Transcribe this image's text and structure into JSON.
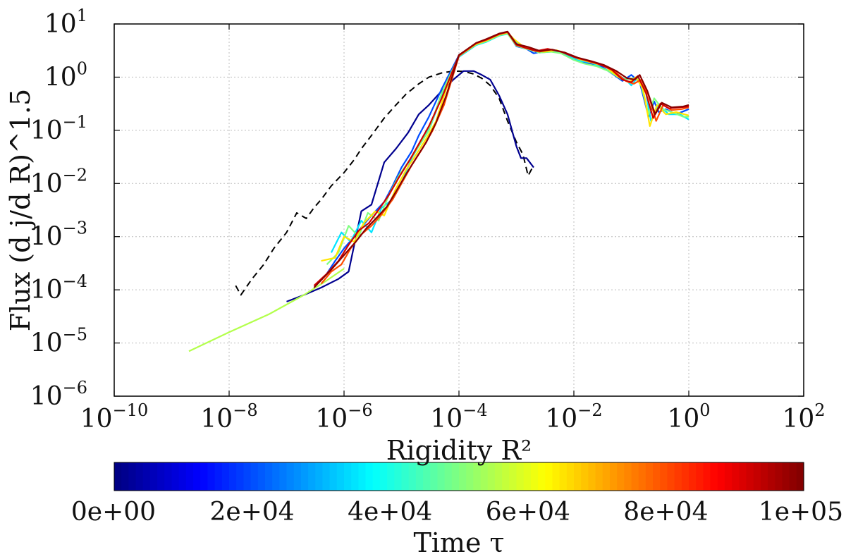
{
  "chart_data": {
    "type": "line",
    "x_scale": "log",
    "y_scale": "log",
    "xlim": [
      1e-10,
      100
    ],
    "ylim": [
      1e-06,
      10
    ],
    "grid": true,
    "xlabel": "Rigidity R²",
    "ylabel": "Flux (d j/d R)^1.5",
    "x_ticks": [
      {
        "value": 1e-10,
        "base": "10",
        "exp": "−10"
      },
      {
        "value": 1e-08,
        "base": "10",
        "exp": "−8"
      },
      {
        "value": 1e-06,
        "base": "10",
        "exp": "−6"
      },
      {
        "value": 0.0001,
        "base": "10",
        "exp": "−4"
      },
      {
        "value": 0.01,
        "base": "10",
        "exp": "−2"
      },
      {
        "value": 1,
        "base": "10",
        "exp": "0"
      },
      {
        "value": 100,
        "base": "10",
        "exp": "2"
      }
    ],
    "y_ticks": [
      {
        "value": 1e-06,
        "base": "10",
        "exp": "−6"
      },
      {
        "value": 1e-05,
        "base": "10",
        "exp": "−5"
      },
      {
        "value": 0.0001,
        "base": "10",
        "exp": "−4"
      },
      {
        "value": 0.001,
        "base": "10",
        "exp": "−3"
      },
      {
        "value": 0.01,
        "base": "10",
        "exp": "−2"
      },
      {
        "value": 0.1,
        "base": "10",
        "exp": "−1"
      },
      {
        "value": 1,
        "base": "10",
        "exp": "0"
      },
      {
        "value": 10,
        "base": "10",
        "exp": "1"
      }
    ],
    "colorbar": {
      "label": "Time τ",
      "range": [
        0,
        100000
      ],
      "tick_labels": [
        "0e+00",
        "2e+04",
        "4e+04",
        "6e+04",
        "8e+04",
        "1e+05"
      ],
      "colormap": "jet"
    },
    "series": [
      {
        "id": "reference-dashed",
        "style": "dashed",
        "color": "#000000",
        "x": [
          1.3e-08,
          1.6e-08,
          2.5e-08,
          4e-08,
          6e-08,
          1e-07,
          1.5e-07,
          2.2e-07,
          3e-07,
          4e-07,
          6e-07,
          1e-06,
          1.5e-06,
          2e-06,
          3e-06,
          5e-06,
          8e-06,
          1.2e-05,
          2e-05,
          3e-05,
          5e-05,
          8e-05,
          0.00012,
          0.00018,
          0.00025,
          0.00035,
          0.0005,
          0.0007,
          0.001,
          0.0013,
          0.0016,
          0.002
        ],
        "y": [
          0.00012,
          8e-05,
          0.00016,
          0.0003,
          0.0006,
          0.0012,
          0.0028,
          0.0022,
          0.0035,
          0.005,
          0.009,
          0.016,
          0.028,
          0.045,
          0.08,
          0.17,
          0.3,
          0.48,
          0.75,
          1.0,
          1.2,
          1.3,
          1.28,
          1.15,
          0.95,
          0.7,
          0.4,
          0.15,
          0.06,
          0.035,
          0.014,
          0.022
        ]
      },
      {
        "id": "early-time",
        "t": 1500,
        "x": [
          1e-07,
          2e-07,
          4e-07,
          8e-07,
          1.2e-06,
          2e-06,
          3e-06,
          5e-06,
          8e-06,
          1.3e-05,
          2e-05,
          3e-05,
          5e-05,
          8e-05,
          0.00012,
          0.00018,
          0.00025,
          0.00035,
          0.0005,
          0.0007,
          0.001,
          0.0012,
          0.0015,
          0.002
        ],
        "y": [
          6e-05,
          8e-05,
          0.00011,
          0.00016,
          0.00022,
          0.003,
          0.004,
          0.025,
          0.045,
          0.09,
          0.2,
          0.3,
          0.55,
          0.9,
          1.3,
          1.3,
          1.1,
          0.9,
          0.45,
          0.2,
          0.05,
          0.03,
          0.03,
          0.02
        ]
      },
      {
        "id": "green-branch",
        "t": 55000,
        "x": [
          2e-09,
          1e-08,
          5e-08,
          2e-07,
          5e-07,
          1e-06
        ],
        "y": [
          7e-06,
          1.6e-05,
          3.5e-05,
          8e-05,
          0.00015,
          0.00025
        ]
      },
      {
        "id": "run-a",
        "t": 20000,
        "x": [
          5e-07,
          7e-07,
          1e-06,
          1.5e-06,
          2e-06,
          3e-06,
          5e-06,
          7e-06,
          1e-05,
          1.5e-05,
          2e-05,
          3e-05,
          5e-05,
          0.0001,
          0.0002,
          0.0003,
          0.0005,
          0.0007,
          0.0008,
          0.001,
          0.0015,
          0.002,
          0.003,
          0.005,
          0.007,
          0.01,
          0.02,
          0.03,
          0.05,
          0.07,
          0.1,
          0.14,
          0.2,
          0.25,
          0.3,
          0.4,
          0.6,
          1.0
        ],
        "y": [
          0.0002,
          0.00035,
          0.0006,
          0.001,
          0.0015,
          0.0025,
          0.0045,
          0.009,
          0.02,
          0.04,
          0.08,
          0.18,
          0.6,
          2.6,
          4.2,
          4.8,
          6.2,
          6.8,
          5.5,
          3.8,
          3.4,
          2.8,
          3.1,
          3.1,
          2.6,
          2.1,
          1.8,
          1.6,
          1.1,
          0.85,
          1.1,
          0.8,
          0.18,
          0.35,
          0.22,
          0.25,
          0.2,
          0.25
        ]
      },
      {
        "id": "run-b",
        "t": 35000,
        "x": [
          6e-07,
          9e-07,
          1.3e-06,
          2e-06,
          3e-06,
          4.5e-06,
          7e-06,
          1e-05,
          1.5e-05,
          2.2e-05,
          3.2e-05,
          5e-05,
          0.0001,
          0.0002,
          0.0003,
          0.0005,
          0.0007,
          0.0009,
          0.0012,
          0.0018,
          0.0025,
          0.004,
          0.006,
          0.009,
          0.013,
          0.02,
          0.03,
          0.05,
          0.08,
          0.1,
          0.13,
          0.18,
          0.22,
          0.3,
          0.45,
          0.7,
          1.0
        ],
        "y": [
          0.0005,
          0.0012,
          0.0008,
          0.002,
          0.0012,
          0.0035,
          0.005,
          0.01,
          0.03,
          0.06,
          0.12,
          0.45,
          2.4,
          4.0,
          4.6,
          6.0,
          6.5,
          5.0,
          3.7,
          3.3,
          2.9,
          3.0,
          3.0,
          2.4,
          2.0,
          1.9,
          1.5,
          1.2,
          0.9,
          0.7,
          1.0,
          0.5,
          0.15,
          0.3,
          0.2,
          0.2,
          0.16
        ]
      },
      {
        "id": "run-c",
        "t": 50000,
        "x": [
          5e-07,
          8e-07,
          1.2e-06,
          1.8e-06,
          2.6e-06,
          4e-06,
          6e-06,
          9e-06,
          1.3e-05,
          2e-05,
          3e-05,
          5e-05,
          0.0001,
          0.0002,
          0.0003,
          0.0005,
          0.0007,
          0.001,
          0.0015,
          0.0025,
          0.004,
          0.006,
          0.01,
          0.015,
          0.025,
          0.04,
          0.07,
          0.1,
          0.14,
          0.2,
          0.25,
          0.35,
          0.5,
          0.8,
          1.0
        ],
        "y": [
          0.0003,
          0.0005,
          0.0016,
          0.001,
          0.0028,
          0.002,
          0.006,
          0.014,
          0.025,
          0.05,
          0.1,
          0.5,
          2.5,
          4.1,
          4.7,
          6.1,
          6.6,
          3.9,
          3.4,
          2.9,
          3.0,
          2.8,
          2.1,
          1.8,
          1.6,
          1.3,
          0.9,
          0.95,
          0.9,
          0.2,
          0.4,
          0.25,
          0.22,
          0.18,
          0.18
        ]
      },
      {
        "id": "run-d",
        "t": 65000,
        "x": [
          4e-07,
          7e-07,
          1e-06,
          1.5e-06,
          2.2e-06,
          3.5e-06,
          5e-06,
          8e-06,
          1.2e-05,
          1.8e-05,
          2.7e-05,
          4e-05,
          6e-05,
          0.0001,
          0.0002,
          0.0003,
          0.0005,
          0.0007,
          0.0009,
          0.0013,
          0.002,
          0.003,
          0.005,
          0.008,
          0.012,
          0.02,
          0.035,
          0.06,
          0.09,
          0.12,
          0.16,
          0.21,
          0.28,
          0.4,
          0.6,
          1.0
        ],
        "y": [
          0.00035,
          0.0004,
          0.001,
          0.0008,
          0.0018,
          0.003,
          0.0025,
          0.008,
          0.018,
          0.035,
          0.07,
          0.15,
          0.6,
          2.5,
          4.2,
          4.9,
          6.3,
          6.9,
          5.2,
          3.8,
          3.2,
          3.0,
          3.2,
          2.7,
          2.2,
          1.9,
          1.6,
          1.0,
          0.8,
          1.0,
          0.6,
          0.12,
          0.3,
          0.2,
          0.22,
          0.19
        ]
      },
      {
        "id": "run-e",
        "t": 80000,
        "x": [
          4e-07,
          6e-07,
          9e-07,
          1.3e-06,
          2e-06,
          3e-06,
          4.5e-06,
          7e-06,
          1e-05,
          1.5e-05,
          2.3e-05,
          3.5e-05,
          5.5e-05,
          0.0001,
          0.0002,
          0.0003,
          0.0005,
          0.0007,
          0.001,
          0.0015,
          0.0025,
          0.004,
          0.007,
          0.011,
          0.018,
          0.03,
          0.05,
          0.08,
          0.11,
          0.15,
          0.2,
          0.27,
          0.36,
          0.5,
          0.75,
          1.0
        ],
        "y": [
          0.00013,
          0.00022,
          0.0003,
          0.0006,
          0.0011,
          0.0016,
          0.0026,
          0.005,
          0.01,
          0.022,
          0.045,
          0.1,
          0.3,
          2.5,
          4.3,
          5.0,
          6.4,
          7.0,
          4.0,
          3.5,
          3.0,
          3.3,
          2.9,
          2.3,
          2.0,
          1.7,
          1.3,
          0.85,
          0.75,
          0.9,
          0.45,
          0.15,
          0.3,
          0.24,
          0.25,
          0.27
        ]
      },
      {
        "id": "run-f",
        "t": 92000,
        "x": [
          3e-07,
          5e-07,
          8e-07,
          1.2e-06,
          1.8e-06,
          2.7e-06,
          4e-06,
          6e-06,
          9e-06,
          1.4e-05,
          2e-05,
          3e-05,
          5e-05,
          0.0001,
          0.0002,
          0.0003,
          0.0005,
          0.0007,
          0.001,
          0.0014,
          0.0022,
          0.0035,
          0.006,
          0.01,
          0.016,
          0.026,
          0.045,
          0.07,
          0.1,
          0.13,
          0.18,
          0.24,
          0.32,
          0.45,
          0.7,
          1.0
        ],
        "y": [
          0.00012,
          0.0002,
          0.00035,
          0.0007,
          0.0013,
          0.0018,
          0.0032,
          0.006,
          0.013,
          0.028,
          0.055,
          0.12,
          0.4,
          2.6,
          4.4,
          5.1,
          6.5,
          7.1,
          4.1,
          3.6,
          3.1,
          3.4,
          3.0,
          2.4,
          2.1,
          1.8,
          1.4,
          0.9,
          0.8,
          1.05,
          0.5,
          0.17,
          0.32,
          0.26,
          0.27,
          0.28
        ]
      },
      {
        "id": "run-g",
        "t": 99000,
        "x": [
          3e-07,
          6e-07,
          1e-06,
          1.6e-06,
          2.4e-06,
          3.6e-06,
          5.5e-06,
          8e-06,
          1.2e-05,
          1.8e-05,
          2.7e-05,
          4e-05,
          6e-05,
          0.0001,
          0.0002,
          0.0003,
          0.0005,
          0.0007,
          0.001,
          0.0016,
          0.0026,
          0.0042,
          0.007,
          0.012,
          0.02,
          0.033,
          0.055,
          0.085,
          0.115,
          0.14,
          0.19,
          0.26,
          0.34,
          0.5,
          0.8,
          1.0
        ],
        "y": [
          0.00011,
          0.00024,
          0.00045,
          0.0008,
          0.0014,
          0.0022,
          0.0036,
          0.007,
          0.015,
          0.03,
          0.06,
          0.14,
          0.45,
          2.6,
          4.4,
          5.2,
          6.6,
          7.2,
          4.2,
          3.7,
          3.1,
          3.3,
          2.9,
          2.3,
          2.0,
          1.7,
          1.3,
          0.95,
          0.9,
          1.1,
          0.55,
          0.2,
          0.33,
          0.27,
          0.28,
          0.3
        ]
      }
    ]
  }
}
